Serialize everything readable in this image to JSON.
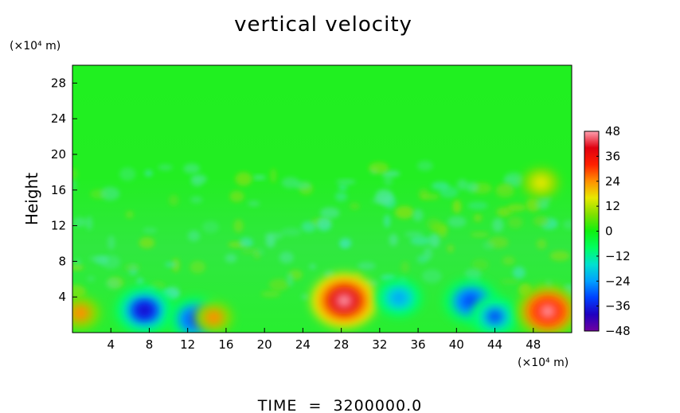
{
  "chart_data": {
    "type": "heatmap",
    "title": "vertical velocity",
    "xlabel": "",
    "ylabel": "Height",
    "x_units": "(×10⁴ m)",
    "y_units": "(×10⁴ m)",
    "xlim": [
      0,
      52
    ],
    "ylim": [
      0,
      30
    ],
    "xticks": [
      4,
      8,
      12,
      16,
      20,
      24,
      28,
      32,
      36,
      40,
      44,
      48
    ],
    "yticks": [
      4,
      8,
      12,
      16,
      20,
      24,
      28
    ],
    "colorbar": {
      "ticks": [
        48,
        36,
        24,
        12,
        0,
        -12,
        -24,
        -36,
        -48
      ],
      "range": [
        -48,
        48
      ],
      "colors": [
        "#7000a0",
        "#2000c0",
        "#0040ff",
        "#00a0ff",
        "#00e0d0",
        "#00ff60",
        "#10f010",
        "#80e000",
        "#e8e800",
        "#ff9000",
        "#ff2000",
        "#e00010",
        "#ffa0b0"
      ]
    },
    "features": [
      {
        "label": "downdraft",
        "x": 7.5,
        "y": 2.5,
        "value": -40
      },
      {
        "label": "downdraft",
        "x": 12.8,
        "y": 1.5,
        "value": -36
      },
      {
        "label": "updraft",
        "x": 14.7,
        "y": 1.7,
        "value": 20
      },
      {
        "label": "updraft",
        "x": 0.8,
        "y": 2.2,
        "value": 22
      },
      {
        "label": "updraft",
        "x": 28.3,
        "y": 3.6,
        "value": 48
      },
      {
        "label": "downdraft",
        "x": 34.0,
        "y": 3.9,
        "value": -28
      },
      {
        "label": "downdraft",
        "x": 41.5,
        "y": 3.5,
        "value": -36
      },
      {
        "label": "downdraft",
        "x": 44.0,
        "y": 1.8,
        "value": -30
      },
      {
        "label": "updraft",
        "x": 49.5,
        "y": 2.4,
        "value": 44
      },
      {
        "label": "updraft",
        "x": 48.8,
        "y": 16.8,
        "value": 18
      }
    ]
  },
  "footer": {
    "time_label": "TIME  =  3200000.0"
  }
}
